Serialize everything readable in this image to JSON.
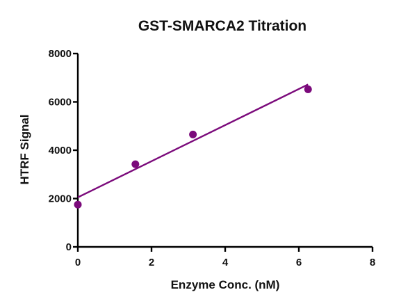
{
  "chart_data": {
    "type": "scatter",
    "title": "GST-SMARCA2 Titration",
    "xlabel": "Enzyme Conc. (nM)",
    "ylabel": "HTRF Signal",
    "xlim": [
      0,
      8
    ],
    "ylim": [
      0,
      8000
    ],
    "x_ticks": [
      0,
      2,
      4,
      6,
      8
    ],
    "y_ticks": [
      0,
      2000,
      4000,
      6000,
      8000
    ],
    "x_tick_labels": [
      "0",
      "2",
      "4",
      "6",
      "8"
    ],
    "y_tick_labels": [
      "0",
      "2000",
      "4000",
      "6000",
      "8000"
    ],
    "grid": false,
    "series": [
      {
        "x": [
          0,
          1.5625,
          3.125,
          6.25
        ],
        "y": [
          1750,
          3420,
          4650,
          6520
        ],
        "color": "#7b0a7b"
      }
    ],
    "fit_line": {
      "type": "linear",
      "x": [
        0,
        6.25
      ],
      "y": [
        2050,
        6720
      ],
      "color": "#7b0a7b"
    }
  }
}
